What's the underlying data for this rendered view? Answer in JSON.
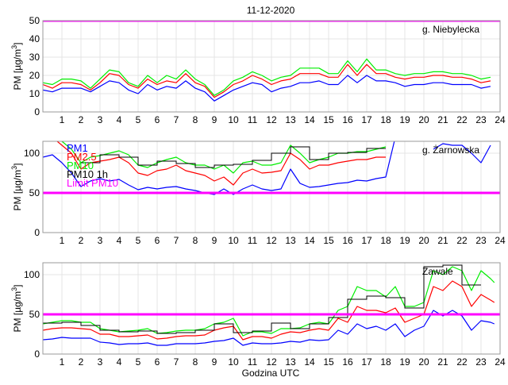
{
  "chart_data": {
    "title": "11-12-2020",
    "xlabel": "Godzina UTC",
    "ylabel": {
      "main": "PM [µg/m",
      "sup": "3",
      "close": "]"
    },
    "xlim": [
      0,
      24
    ],
    "xticks": [
      1,
      2,
      3,
      4,
      5,
      6,
      7,
      8,
      9,
      10,
      11,
      12,
      13,
      14,
      15,
      16,
      17,
      18,
      19,
      20,
      21,
      22,
      23,
      24
    ],
    "colors": {
      "PM1": "#0000ff",
      "PM2.5": "#ff0000",
      "PM10": "#00ee00",
      "PM10 1h": "#000000",
      "Limit PM10": "#ff00ff"
    },
    "legend": [
      "PM1",
      "PM2.5",
      "PM10",
      "PM10 1h",
      "Limit PM10"
    ],
    "limit_pm10": 50,
    "x_step_hours": 0.5,
    "panels": [
      {
        "type": "line",
        "station": "g. Niebylecka",
        "ylim": [
          0,
          50
        ],
        "yticks": [
          0,
          10,
          20,
          30,
          40,
          50
        ],
        "series": [
          {
            "name": "PM1",
            "values": [
              12,
              11,
              13,
              13,
              13,
              11,
              14,
              17,
              16,
              12,
              10,
              15,
              12,
              14,
              13,
              17,
              13,
              11,
              6,
              9,
              12,
              14,
              16,
              15,
              11,
              13,
              14,
              16,
              16,
              17,
              15,
              15,
              20,
              16,
              20,
              17,
              17,
              16,
              14,
              15,
              15,
              16,
              16,
              15,
              15,
              15,
              13,
              14
            ]
          },
          {
            "name": "PM2.5",
            "values": [
              15,
              13,
              16,
              16,
              15,
              12,
              16,
              21,
              20,
              15,
              13,
              18,
              15,
              17,
              16,
              21,
              16,
              14,
              8,
              11,
              15,
              17,
              20,
              18,
              15,
              17,
              18,
              21,
              21,
              21,
              19,
              19,
              26,
              20,
              26,
              21,
              21,
              19,
              18,
              19,
              19,
              20,
              20,
              19,
              19,
              18,
              16,
              17
            ]
          },
          {
            "name": "PM10",
            "values": [
              16,
              15,
              18,
              18,
              17,
              13,
              18,
              23,
              22,
              16,
              14,
              20,
              16,
              20,
              18,
              23,
              18,
              15,
              9,
              12,
              17,
              19,
              22,
              20,
              17,
              19,
              20,
              24,
              24,
              24,
              21,
              21,
              28,
              22,
              29,
              23,
              23,
              21,
              20,
              21,
              21,
              22,
              22,
              21,
              21,
              20,
              18,
              19
            ]
          }
        ],
        "pm10_1h": []
      },
      {
        "type": "line",
        "station": "g. Żarnowska",
        "ylim": [
          0,
          115
        ],
        "yticks": [
          0,
          50,
          100
        ],
        "show_legend": true,
        "series": [
          {
            "name": "PM1",
            "values": [
              95,
              98,
              88,
              75,
              58,
              65,
              68,
              65,
              67,
              60,
              54,
              57,
              55,
              57,
              58,
              55,
              53,
              50,
              48,
              55,
              48,
              55,
              60,
              55,
              53,
              55,
              80,
              62,
              57,
              58,
              60,
              62,
              63,
              66,
              65,
              68,
              70,
              120,
              null,
              null,
              null,
              105,
              112,
              110,
              110,
              100,
              88,
              110
            ]
          },
          {
            "name": "PM2.5",
            "values": [
              130,
              120,
              110,
              100,
              80,
              88,
              90,
              92,
              95,
              88,
              75,
              72,
              78,
              80,
              85,
              78,
              75,
              72,
              65,
              70,
              60,
              75,
              80,
              75,
              76,
              78,
              100,
              92,
              80,
              85,
              85,
              88,
              90,
              92,
              92,
              95,
              95,
              null,
              null,
              null,
              null,
              null,
              null,
              null,
              null,
              null,
              null,
              null
            ]
          },
          {
            "name": "PM10",
            "values": [
              135,
              125,
              115,
              105,
              88,
              95,
              97,
              100,
              103,
              98,
              85,
              82,
              88,
              92,
              95,
              88,
              85,
              85,
              80,
              85,
              75,
              88,
              90,
              85,
              85,
              88,
              110,
              100,
              88,
              92,
              95,
              100,
              100,
              102,
              102,
              105,
              108,
              null,
              null,
              null,
              null,
              null,
              null,
              null,
              null,
              null,
              null,
              null
            ]
          }
        ],
        "pm10_1h": [
          {
            "hour": 2,
            "value": 88
          },
          {
            "hour": 3,
            "value": 98
          },
          {
            "hour": 4,
            "value": 95
          },
          {
            "hour": 5,
            "value": 85
          },
          {
            "hour": 6,
            "value": 90
          },
          {
            "hour": 7,
            "value": 87
          },
          {
            "hour": 8,
            "value": 82
          },
          {
            "hour": 9,
            "value": 85
          },
          {
            "hour": 10,
            "value": 86
          },
          {
            "hour": 11,
            "value": 91
          },
          {
            "hour": 12,
            "value": 100
          },
          {
            "hour": 13,
            "value": 108
          },
          {
            "hour": 14,
            "value": 92
          },
          {
            "hour": 15,
            "value": 100
          },
          {
            "hour": 16,
            "value": 101
          },
          {
            "hour": 17,
            "value": 106
          }
        ]
      },
      {
        "type": "line",
        "station": "Zawale",
        "ylim": [
          0,
          115
        ],
        "yticks": [
          0,
          50,
          100
        ],
        "series": [
          {
            "name": "PM1",
            "values": [
              18,
              19,
              21,
              20,
              20,
              20,
              15,
              14,
              12,
              13,
              13,
              14,
              11,
              11,
              13,
              13,
              13,
              14,
              16,
              17,
              20,
              11,
              14,
              13,
              13,
              14,
              16,
              15,
              18,
              17,
              18,
              30,
              25,
              38,
              32,
              35,
              30,
              38,
              22,
              30,
              35,
              55,
              48,
              55,
              48,
              30,
              42,
              40,
              38
            ]
          },
          {
            "name": "PM2.5",
            "values": [
              30,
              32,
              33,
              33,
              32,
              31,
              25,
              25,
              22,
              22,
              23,
              24,
              19,
              20,
              22,
              23,
              23,
              24,
              30,
              33,
              35,
              18,
              22,
              22,
              20,
              25,
              28,
              27,
              30,
              32,
              30,
              45,
              40,
              60,
              55,
              55,
              52,
              58,
              40,
              45,
              50,
              85,
              80,
              92,
              85,
              60,
              75,
              68,
              65
            ]
          },
          {
            "name": "PM10",
            "values": [
              38,
              40,
              42,
              42,
              40,
              40,
              32,
              30,
              28,
              29,
              30,
              32,
              26,
              27,
              29,
              30,
              30,
              32,
              38,
              40,
              45,
              23,
              28,
              28,
              26,
              32,
              32,
              33,
              38,
              40,
              38,
              55,
              60,
              85,
              80,
              80,
              72,
              85,
              60,
              60,
              65,
              105,
              100,
              110,
              105,
              80,
              105,
              95,
              90
            ]
          }
        ],
        "pm10_1h": [
          {
            "hour": 0,
            "value": 39
          },
          {
            "hour": 1,
            "value": 40
          },
          {
            "hour": 2,
            "value": 36
          },
          {
            "hour": 3,
            "value": 30
          },
          {
            "hour": 4,
            "value": 28
          },
          {
            "hour": 5,
            "value": 29
          },
          {
            "hour": 6,
            "value": 26
          },
          {
            "hour": 7,
            "value": 27
          },
          {
            "hour": 8,
            "value": 30
          },
          {
            "hour": 9,
            "value": 38
          },
          {
            "hour": 10,
            "value": 27
          },
          {
            "hour": 11,
            "value": 29
          },
          {
            "hour": 12,
            "value": 39
          },
          {
            "hour": 13,
            "value": 32
          },
          {
            "hour": 14,
            "value": 38
          },
          {
            "hour": 15,
            "value": 46
          },
          {
            "hour": 16,
            "value": 69
          },
          {
            "hour": 17,
            "value": 73
          },
          {
            "hour": 18,
            "value": 71
          },
          {
            "hour": 19,
            "value": 58
          },
          {
            "hour": 20,
            "value": 110
          },
          {
            "hour": 21,
            "value": 112
          },
          {
            "hour": 22,
            "value": 87
          }
        ]
      }
    ]
  }
}
